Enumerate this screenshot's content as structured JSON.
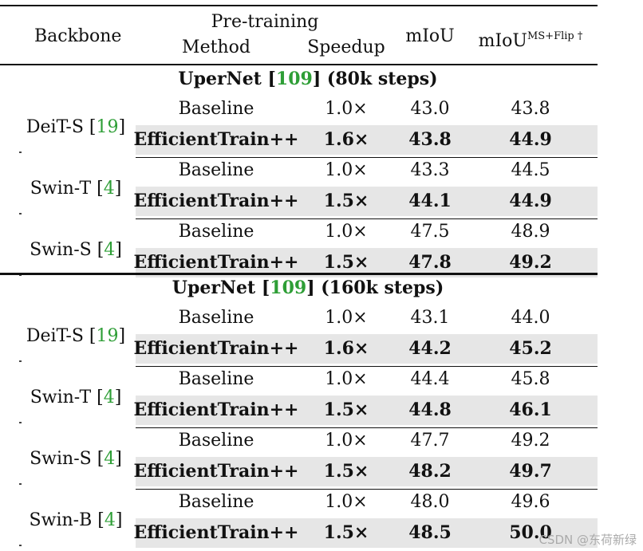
{
  "header": {
    "backbone": "Backbone",
    "pretraining": "Pre-training",
    "method": "Method",
    "speedup": "Speedup",
    "miou": "mIoU",
    "miou_ms_base": "mIoU",
    "miou_ms_sup": "MS+Flip †"
  },
  "sections": [
    {
      "title_pre": "UperNet [",
      "title_cite": "109",
      "title_post": "] (80k steps)",
      "groups": [
        {
          "name": "DeiT-S [",
          "cite": "19",
          "close": "]",
          "rows": [
            {
              "method": "Baseline",
              "speedup": "1.0×",
              "miou": "43.0",
              "miou_ms": "43.8",
              "bold": false
            },
            {
              "method": "EfficientTrain++",
              "speedup": "1.6×",
              "miou": "43.8",
              "miou_ms": "44.9",
              "bold": true
            }
          ]
        },
        {
          "name": "Swin-T [",
          "cite": "4",
          "close": "]",
          "rows": [
            {
              "method": "Baseline",
              "speedup": "1.0×",
              "miou": "43.3",
              "miou_ms": "44.5",
              "bold": false
            },
            {
              "method": "EfficientTrain++",
              "speedup": "1.5×",
              "miou": "44.1",
              "miou_ms": "44.9",
              "bold": true
            }
          ]
        },
        {
          "name": "Swin-S [",
          "cite": "4",
          "close": "]",
          "rows": [
            {
              "method": "Baseline",
              "speedup": "1.0×",
              "miou": "47.5",
              "miou_ms": "48.9",
              "bold": false
            },
            {
              "method": "EfficientTrain++",
              "speedup": "1.5×",
              "miou": "47.8",
              "miou_ms": "49.2",
              "bold": true
            }
          ]
        }
      ]
    },
    {
      "title_pre": "UperNet [",
      "title_cite": "109",
      "title_post": "] (160k steps)",
      "groups": [
        {
          "name": "DeiT-S [",
          "cite": "19",
          "close": "]",
          "rows": [
            {
              "method": "Baseline",
              "speedup": "1.0×",
              "miou": "43.1",
              "miou_ms": "44.0",
              "bold": false
            },
            {
              "method": "EfficientTrain++",
              "speedup": "1.6×",
              "miou": "44.2",
              "miou_ms": "45.2",
              "bold": true
            }
          ]
        },
        {
          "name": "Swin-T [",
          "cite": "4",
          "close": "]",
          "rows": [
            {
              "method": "Baseline",
              "speedup": "1.0×",
              "miou": "44.4",
              "miou_ms": "45.8",
              "bold": false
            },
            {
              "method": "EfficientTrain++",
              "speedup": "1.5×",
              "miou": "44.8",
              "miou_ms": "46.1",
              "bold": true
            }
          ]
        },
        {
          "name": "Swin-S [",
          "cite": "4",
          "close": "]",
          "rows": [
            {
              "method": "Baseline",
              "speedup": "1.0×",
              "miou": "47.7",
              "miou_ms": "49.2",
              "bold": false
            },
            {
              "method": "EfficientTrain++",
              "speedup": "1.5×",
              "miou": "48.2",
              "miou_ms": "49.7",
              "bold": true
            }
          ]
        },
        {
          "name": "Swin-B [",
          "cite": "4",
          "close": "]",
          "rows": [
            {
              "method": "Baseline",
              "speedup": "1.0×",
              "miou": "48.0",
              "miou_ms": "49.6",
              "bold": false
            },
            {
              "method": "EfficientTrain++",
              "speedup": "1.5×",
              "miou": "48.5",
              "miou_ms": "50.0",
              "bold": true
            }
          ]
        }
      ]
    }
  ],
  "watermark": "CSDN @东荷新绿",
  "colors": {
    "citation": "#2e9e36",
    "highlight_row": "#e6e6e6",
    "rule": "#111111"
  }
}
